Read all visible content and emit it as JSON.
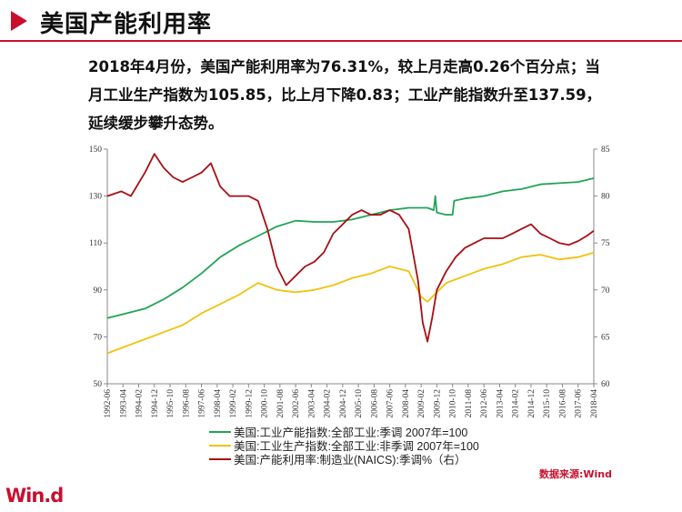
{
  "slide_title": "美国产能利用率",
  "summary_lines": [
    "2018年4月份，美国产能利用率为76.31%，较上月走高0.26个百分点；当",
    "月工业生产指数为105.85，比上月下降0.83；工业产能指数升至137.59，",
    "延续缓步攀升态势。"
  ],
  "source": "数据来源:Wind",
  "logo": "Win.d",
  "colors": {
    "accent": "#c8102e",
    "capacity_index": "#22a455",
    "production_index": "#f0c20e",
    "utilization": "#a80f14"
  },
  "chart_data": {
    "type": "line",
    "x_ticks": [
      "1992-06",
      "1993-04",
      "1994-02",
      "1994-12",
      "1995-10",
      "1996-08",
      "1997-06",
      "1998-04",
      "1999-02",
      "1999-12",
      "2000-10",
      "2001-08",
      "2002-06",
      "2003-04",
      "2004-02",
      "2004-12",
      "2005-10",
      "2006-08",
      "2007-06",
      "2008-04",
      "2009-02",
      "2009-12",
      "2010-10",
      "2011-08",
      "2012-06",
      "2013-04",
      "2014-02",
      "2014-12",
      "2015-10",
      "2016-08",
      "2017-06",
      "2018-04"
    ],
    "y_left": {
      "min": 50,
      "max": 150,
      "ticks": [
        50,
        70,
        90,
        110,
        130,
        150
      ]
    },
    "y_right": {
      "min": 60,
      "max": 85,
      "ticks": [
        60,
        65,
        70,
        75,
        80,
        85
      ]
    },
    "legend": {
      "placement": "bottom",
      "items": [
        "美国:工业产能指数:全部工业:季调 2007年=100",
        "美国:工业生产指数:全部工业:非季调 2007年=100",
        "美国:产能利用率:制造业(NAICS):季调%（右）"
      ]
    },
    "series": [
      {
        "name": "美国:工业产能指数:全部工业:季调 2007年=100",
        "axis": "left",
        "points": [
          [
            "1992-06",
            78
          ],
          [
            "1993-06",
            80
          ],
          [
            "1994-06",
            82
          ],
          [
            "1995-06",
            86
          ],
          [
            "1996-06",
            91
          ],
          [
            "1997-06",
            97
          ],
          [
            "1998-06",
            104
          ],
          [
            "1999-06",
            109
          ],
          [
            "2000-06",
            113
          ],
          [
            "2001-06",
            117
          ],
          [
            "2002-06",
            119.5
          ],
          [
            "2003-06",
            119
          ],
          [
            "2004-06",
            119
          ],
          [
            "2005-06",
            120
          ],
          [
            "2006-06",
            122
          ],
          [
            "2007-06",
            124
          ],
          [
            "2008-06",
            125
          ],
          [
            "2009-06",
            125
          ],
          [
            "2009-10",
            124
          ],
          [
            "2009-11",
            130
          ],
          [
            "2009-12",
            123
          ],
          [
            "2010-06",
            122
          ],
          [
            "2010-10",
            122
          ],
          [
            "2010-11",
            128
          ],
          [
            "2011-06",
            129
          ],
          [
            "2012-06",
            130
          ],
          [
            "2013-06",
            132
          ],
          [
            "2014-06",
            133
          ],
          [
            "2015-06",
            135
          ],
          [
            "2016-06",
            135.5
          ],
          [
            "2017-06",
            136
          ],
          [
            "2018-04",
            137.59
          ]
        ]
      },
      {
        "name": "美国:工业生产指数:全部工业:非季调 2007年=100",
        "axis": "left",
        "points": [
          [
            "1992-06",
            63
          ],
          [
            "1993-06",
            66
          ],
          [
            "1994-06",
            69
          ],
          [
            "1995-06",
            72
          ],
          [
            "1996-06",
            75
          ],
          [
            "1997-06",
            80
          ],
          [
            "1998-06",
            84
          ],
          [
            "1999-06",
            88
          ],
          [
            "2000-06",
            93
          ],
          [
            "2001-06",
            90
          ],
          [
            "2002-06",
            89
          ],
          [
            "2003-06",
            90
          ],
          [
            "2004-06",
            92
          ],
          [
            "2005-06",
            95
          ],
          [
            "2006-06",
            97
          ],
          [
            "2007-06",
            100
          ],
          [
            "2008-06",
            98
          ],
          [
            "2009-02",
            87
          ],
          [
            "2009-06",
            85
          ],
          [
            "2009-12",
            89
          ],
          [
            "2010-06",
            93
          ],
          [
            "2011-06",
            96
          ],
          [
            "2012-06",
            99
          ],
          [
            "2013-06",
            101
          ],
          [
            "2014-06",
            104
          ],
          [
            "2015-06",
            105
          ],
          [
            "2016-06",
            103
          ],
          [
            "2017-06",
            104
          ],
          [
            "2018-04",
            105.85
          ]
        ]
      },
      {
        "name": "美国:产能利用率:制造业(NAICS):季调%（右）",
        "axis": "right",
        "points": [
          [
            "1992-06",
            80
          ],
          [
            "1993-03",
            80.5
          ],
          [
            "1993-09",
            80
          ],
          [
            "1994-06",
            82.5
          ],
          [
            "1994-12",
            84.5
          ],
          [
            "1995-06",
            83
          ],
          [
            "1995-12",
            82
          ],
          [
            "1996-06",
            81.5
          ],
          [
            "1996-12",
            82
          ],
          [
            "1997-06",
            82.5
          ],
          [
            "1997-12",
            83.5
          ],
          [
            "1998-06",
            81
          ],
          [
            "1998-12",
            80
          ],
          [
            "1999-06",
            80
          ],
          [
            "1999-12",
            80
          ],
          [
            "2000-06",
            79.5
          ],
          [
            "2000-12",
            76.5
          ],
          [
            "2001-06",
            72.5
          ],
          [
            "2001-12",
            70.5
          ],
          [
            "2002-06",
            71.5
          ],
          [
            "2002-12",
            72.5
          ],
          [
            "2003-06",
            73
          ],
          [
            "2003-12",
            74
          ],
          [
            "2004-06",
            76
          ],
          [
            "2004-12",
            77
          ],
          [
            "2005-06",
            78
          ],
          [
            "2005-12",
            78.5
          ],
          [
            "2006-06",
            78
          ],
          [
            "2006-12",
            78
          ],
          [
            "2007-06",
            78.5
          ],
          [
            "2007-12",
            78
          ],
          [
            "2008-06",
            76.5
          ],
          [
            "2008-12",
            71
          ],
          [
            "2009-03",
            66.5
          ],
          [
            "2009-06",
            64.5
          ],
          [
            "2009-09",
            67
          ],
          [
            "2009-12",
            70
          ],
          [
            "2010-06",
            72
          ],
          [
            "2010-12",
            73.5
          ],
          [
            "2011-06",
            74.5
          ],
          [
            "2011-12",
            75
          ],
          [
            "2012-06",
            75.5
          ],
          [
            "2012-12",
            75.5
          ],
          [
            "2013-06",
            75.5
          ],
          [
            "2013-12",
            76
          ],
          [
            "2014-06",
            76.5
          ],
          [
            "2014-12",
            77
          ],
          [
            "2015-06",
            76
          ],
          [
            "2015-12",
            75.5
          ],
          [
            "2016-06",
            75
          ],
          [
            "2016-12",
            74.8
          ],
          [
            "2017-06",
            75.2
          ],
          [
            "2017-12",
            75.8
          ],
          [
            "2018-04",
            76.31
          ]
        ]
      }
    ]
  }
}
